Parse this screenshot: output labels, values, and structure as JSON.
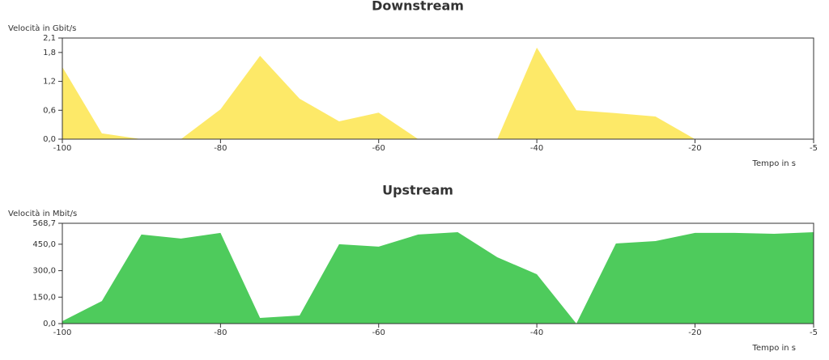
{
  "chart_data": [
    {
      "type": "area",
      "title": "Downstream",
      "y_label": "Velocità in Gbit/s",
      "x_label": "Tempo in s",
      "color": "#fde968",
      "x": [
        -100,
        -95,
        -90,
        -85,
        -80,
        -75,
        -70,
        -65,
        -60,
        -55,
        -50,
        -45,
        -40,
        -35,
        -30,
        -25,
        -20,
        -15,
        -10,
        -5
      ],
      "values": [
        1.5,
        0.12,
        0,
        0,
        0.62,
        1.73,
        0.84,
        0.37,
        0.55,
        0,
        0,
        0,
        1.9,
        0.6,
        0.54,
        0.47,
        0,
        0,
        0,
        0
      ],
      "xlim": [
        -100,
        -5
      ],
      "xticks": [
        -100,
        -80,
        -60,
        -40,
        -20,
        -5
      ],
      "ylim": [
        0,
        2.1
      ],
      "yticks": [
        {
          "value": 0,
          "label": "0,0"
        },
        {
          "value": 0.6,
          "label": "0,6"
        },
        {
          "value": 1.2,
          "label": "1,2"
        },
        {
          "value": 1.8,
          "label": "1,8"
        },
        {
          "value": 2.1,
          "label": "2,1"
        }
      ]
    },
    {
      "type": "area",
      "title": "Upstream",
      "y_label": "Velocità in Mbit/s",
      "x_label": "Tempo in s",
      "color": "#4ecb5c",
      "x": [
        -100,
        -95,
        -90,
        -85,
        -80,
        -75,
        -70,
        -65,
        -60,
        -55,
        -50,
        -45,
        -40,
        -35,
        -30,
        -25,
        -20,
        -15,
        -10,
        -5
      ],
      "values": [
        14,
        128,
        505,
        482,
        514,
        32,
        46,
        450,
        436,
        505,
        518,
        376,
        280,
        0,
        454,
        468,
        514,
        514,
        509,
        518
      ],
      "xlim": [
        -100,
        -5
      ],
      "xticks": [
        -100,
        -80,
        -60,
        -40,
        -20,
        -5
      ],
      "ylim": [
        0,
        568.7
      ],
      "yticks": [
        {
          "value": 0,
          "label": "0,0"
        },
        {
          "value": 150,
          "label": "150,0"
        },
        {
          "value": 300,
          "label": "300,0"
        },
        {
          "value": 450,
          "label": "450,0"
        },
        {
          "value": 568.7,
          "label": "568,7"
        }
      ]
    }
  ]
}
